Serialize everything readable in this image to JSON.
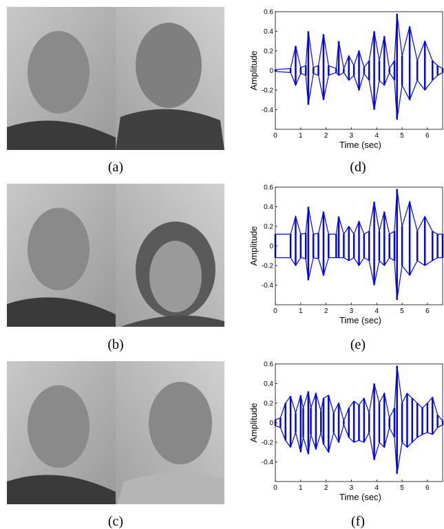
{
  "figure": {
    "captions": [
      "(a)",
      "(b)",
      "(c)",
      "(d)",
      "(e)",
      "(f)"
    ]
  },
  "chart_data": [
    {
      "type": "waveform",
      "xlabel": "Time (sec)",
      "ylabel": "Amplitude",
      "color": "#0000ff",
      "xlim": [
        0,
        6.6
      ],
      "ylim": [
        -0.6,
        0.6
      ],
      "xticks": [
        0,
        1,
        2,
        3,
        4,
        5,
        6
      ],
      "yticks": [
        -0.4,
        -0.2,
        0,
        0.2,
        0.4,
        0.6
      ],
      "x": [
        0,
        0.6,
        0.8,
        1.0,
        1.2,
        1.3,
        1.5,
        1.7,
        1.9,
        2.1,
        2.4,
        2.5,
        2.7,
        2.9,
        3.1,
        3.3,
        3.5,
        3.7,
        3.9,
        4.1,
        4.3,
        4.5,
        4.7,
        4.8,
        5.0,
        5.3,
        5.6,
        5.9,
        6.2,
        6.4,
        6.6
      ],
      "upper": [
        0.01,
        0.02,
        0.25,
        0.03,
        0.05,
        0.4,
        0.03,
        0.05,
        0.37,
        0.05,
        0.02,
        0.3,
        0.02,
        0.15,
        0.05,
        0.2,
        0.03,
        0.1,
        0.4,
        0.1,
        0.35,
        0.02,
        0.1,
        0.58,
        0.15,
        0.45,
        0.1,
        0.3,
        0.1,
        0.05,
        0.02
      ],
      "lower": [
        -0.01,
        -0.02,
        -0.15,
        -0.03,
        -0.05,
        -0.35,
        -0.03,
        -0.05,
        -0.3,
        -0.05,
        -0.02,
        -0.05,
        -0.02,
        -0.1,
        -0.05,
        -0.2,
        -0.03,
        -0.1,
        -0.4,
        -0.1,
        -0.15,
        -0.02,
        -0.1,
        -0.5,
        -0.15,
        -0.3,
        -0.1,
        -0.2,
        -0.1,
        -0.05,
        -0.02
      ]
    },
    {
      "type": "waveform",
      "xlabel": "Time (sec)",
      "ylabel": "Amplitude",
      "color": "#0000ff",
      "xlim": [
        0,
        6.6
      ],
      "ylim": [
        -0.6,
        0.6
      ],
      "xticks": [
        0,
        1,
        2,
        3,
        4,
        5,
        6
      ],
      "yticks": [
        -0.4,
        -0.2,
        0,
        0.2,
        0.4,
        0.6
      ],
      "x": [
        0,
        0.6,
        0.8,
        1.0,
        1.2,
        1.3,
        1.5,
        1.7,
        1.9,
        2.1,
        2.4,
        2.5,
        2.7,
        2.9,
        3.1,
        3.3,
        3.5,
        3.7,
        3.9,
        4.1,
        4.3,
        4.5,
        4.7,
        4.8,
        5.0,
        5.3,
        5.6,
        5.9,
        6.2,
        6.4,
        6.6
      ],
      "upper": [
        0.12,
        0.12,
        0.3,
        0.12,
        0.13,
        0.4,
        0.12,
        0.13,
        0.35,
        0.12,
        0.12,
        0.3,
        0.12,
        0.2,
        0.12,
        0.25,
        0.12,
        0.15,
        0.45,
        0.15,
        0.35,
        0.12,
        0.15,
        0.58,
        0.2,
        0.45,
        0.15,
        0.3,
        0.15,
        0.12,
        0.12
      ],
      "lower": [
        -0.12,
        -0.12,
        -0.2,
        -0.12,
        -0.13,
        -0.35,
        -0.12,
        -0.13,
        -0.3,
        -0.12,
        -0.12,
        -0.12,
        -0.12,
        -0.15,
        -0.12,
        -0.2,
        -0.12,
        -0.15,
        -0.4,
        -0.15,
        -0.2,
        -0.12,
        -0.15,
        -0.55,
        -0.2,
        -0.3,
        -0.15,
        -0.2,
        -0.15,
        -0.12,
        -0.12
      ]
    },
    {
      "type": "waveform",
      "xlabel": "Time (sec)",
      "ylabel": "Amplitude",
      "color": "#0000ff",
      "xlim": [
        0,
        6.6
      ],
      "ylim": [
        -0.6,
        0.6
      ],
      "xticks": [
        0,
        1,
        2,
        3,
        4,
        5,
        6
      ],
      "yticks": [
        -0.4,
        -0.2,
        0,
        0.2,
        0.4,
        0.6
      ],
      "x": [
        0,
        0.2,
        0.4,
        0.6,
        0.8,
        1.0,
        1.1,
        1.3,
        1.4,
        1.6,
        1.8,
        1.9,
        2.1,
        2.3,
        2.5,
        2.7,
        2.9,
        3.1,
        3.3,
        3.5,
        3.7,
        3.9,
        4.1,
        4.3,
        4.5,
        4.7,
        4.8,
        5.0,
        5.2,
        5.4,
        5.6,
        5.8,
        6.0,
        6.2,
        6.4,
        6.6
      ],
      "upper": [
        0.03,
        0.05,
        0.2,
        0.27,
        0.1,
        0.28,
        0.15,
        0.32,
        0.15,
        0.3,
        0.12,
        0.25,
        0.28,
        0.1,
        0.2,
        0.02,
        0.15,
        0.22,
        0.18,
        0.25,
        0.1,
        0.4,
        0.2,
        0.3,
        0.05,
        0.15,
        0.58,
        0.2,
        0.3,
        0.25,
        0.2,
        0.15,
        0.2,
        0.26,
        0.08,
        0.02
      ],
      "lower": [
        -0.03,
        -0.05,
        -0.18,
        -0.25,
        -0.1,
        -0.3,
        -0.15,
        -0.32,
        -0.12,
        -0.27,
        -0.1,
        -0.22,
        -0.3,
        -0.1,
        -0.2,
        -0.02,
        -0.15,
        -0.2,
        -0.18,
        -0.2,
        -0.1,
        -0.38,
        -0.2,
        -0.25,
        -0.05,
        -0.15,
        -0.52,
        -0.2,
        -0.25,
        -0.2,
        -0.15,
        -0.12,
        -0.1,
        -0.12,
        -0.05,
        -0.02
      ]
    }
  ]
}
